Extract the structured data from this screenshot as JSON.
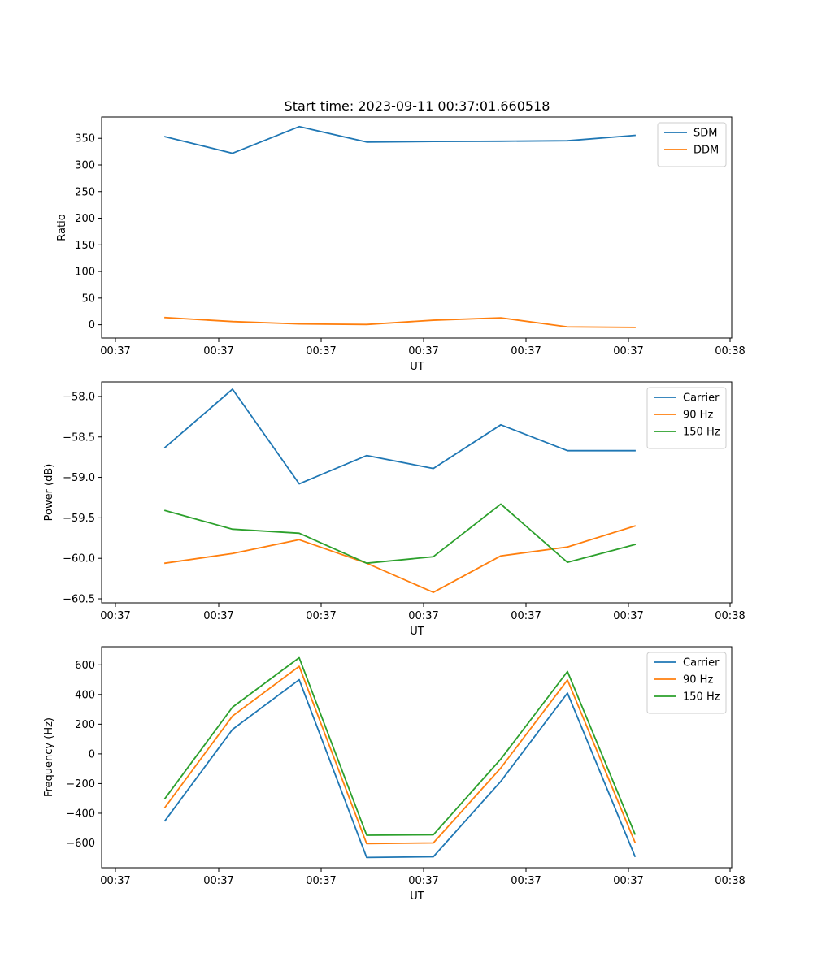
{
  "title": "Start time: 2023-09-11 00:37:01.660518",
  "chart_data": [
    {
      "type": "line",
      "title": "Start time: 2023-09-11 00:37:01.660518",
      "xlabel": "UT",
      "ylabel": "Ratio",
      "xticks": [
        "00:37",
        "00:37",
        "00:37",
        "00:37",
        "00:37",
        "00:37",
        "00:37",
        "00:38"
      ],
      "xlim": [
        -0.75,
        8.75
      ],
      "x": [
        0,
        1,
        2,
        3,
        4,
        5,
        6,
        7
      ],
      "ylim": [
        -25,
        390
      ],
      "yticks": [
        0,
        50,
        100,
        150,
        200,
        250,
        300,
        350
      ],
      "legend_position": "top-right",
      "series": [
        {
          "name": "SDM",
          "color": "#1f77b4",
          "values": [
            353,
            322,
            372,
            343,
            344,
            344.5,
            345.5,
            355.5
          ]
        },
        {
          "name": "DDM",
          "color": "#ff7f0e",
          "values": [
            13.5,
            6,
            1.5,
            0.5,
            8.5,
            13,
            -4,
            -5
          ]
        }
      ]
    },
    {
      "type": "line",
      "xlabel": "UT",
      "ylabel": "Power (dB)",
      "xticks": [
        "00:37",
        "00:37",
        "00:37",
        "00:37",
        "00:37",
        "00:37",
        "00:37",
        "00:38"
      ],
      "xlim": [
        -0.75,
        8.75
      ],
      "x": [
        0,
        1,
        2,
        3,
        4,
        5,
        6,
        7
      ],
      "ylim": [
        -60.55,
        -57.82
      ],
      "yticks": [
        -58.0,
        -58.5,
        -59.0,
        -59.5,
        -60.0,
        -60.5
      ],
      "ytick_labels": [
        "−58.0",
        "−58.5",
        "−59.0",
        "−59.5",
        "−60.0",
        "−60.5"
      ],
      "legend_position": "top-right",
      "series": [
        {
          "name": "Carrier",
          "color": "#1f77b4",
          "values": [
            -58.63,
            -57.91,
            -59.08,
            -58.73,
            -58.89,
            -58.35,
            -58.67,
            -58.67
          ]
        },
        {
          "name": "90 Hz",
          "color": "#ff7f0e",
          "values": [
            -60.06,
            -59.94,
            -59.77,
            -60.06,
            -60.42,
            -59.97,
            -59.86,
            -59.6
          ]
        },
        {
          "name": "150 Hz",
          "color": "#2ca02c",
          "values": [
            -59.41,
            -59.64,
            -59.69,
            -60.06,
            -59.98,
            -59.33,
            -60.05,
            -59.83
          ]
        }
      ]
    },
    {
      "type": "line",
      "xlabel": "UT",
      "ylabel": "Frequency (Hz)",
      "xticks": [
        "00:37",
        "00:37",
        "00:37",
        "00:37",
        "00:37",
        "00:37",
        "00:37",
        "00:38"
      ],
      "xlim": [
        -0.75,
        8.75
      ],
      "x": [
        0,
        1,
        2,
        3,
        4,
        5,
        6,
        7
      ],
      "ylim": [
        -767,
        722
      ],
      "yticks": [
        600,
        400,
        200,
        0,
        -200,
        -400,
        -600
      ],
      "ytick_labels": [
        "600",
        "400",
        "200",
        "0",
        "−200",
        "−400",
        "−600"
      ],
      "legend_position": "top-right",
      "series": [
        {
          "name": "Carrier",
          "color": "#1f77b4",
          "values": [
            -450,
            165,
            500,
            -698,
            -693,
            -185,
            410,
            -690
          ]
        },
        {
          "name": "90 Hz",
          "color": "#ff7f0e",
          "values": [
            -360,
            255,
            590,
            -605,
            -600,
            -95,
            498,
            -595
          ]
        },
        {
          "name": "150 Hz",
          "color": "#2ca02c",
          "values": [
            -300,
            315,
            648,
            -548,
            -545,
            -35,
            555,
            -540
          ]
        }
      ]
    }
  ]
}
